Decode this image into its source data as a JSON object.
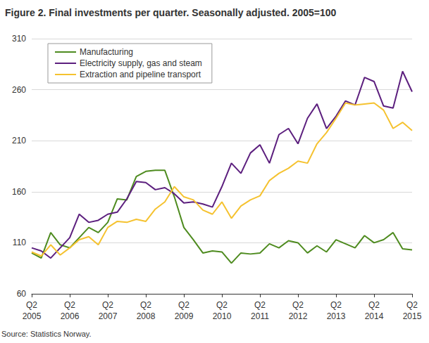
{
  "chart_data": {
    "type": "line",
    "title": "Figure 2. Final investments per quarter. Seasonally adjusted. 2005=100",
    "annotations": [
      "Source: Statistics Norway."
    ],
    "categories": [
      "Q2\n2005",
      null,
      null,
      null,
      "Q2\n2006",
      null,
      null,
      null,
      "Q2\n2007",
      null,
      null,
      null,
      "Q2\n2008",
      null,
      null,
      null,
      "Q2\n2009",
      null,
      null,
      null,
      "Q2\n2010",
      null,
      null,
      null,
      "Q2\n2011",
      null,
      null,
      null,
      "Q2\n2012",
      null,
      null,
      null,
      "Q2\n2013",
      null,
      null,
      null,
      "Q2\n2014",
      null,
      null,
      null,
      "Q2\n2015"
    ],
    "series": [
      {
        "name": "Manufacturing",
        "color": "#4e8b1f",
        "marker": "none",
        "line_style": "solid",
        "values": [
          100,
          95,
          120,
          108,
          105,
          115,
          125,
          120,
          130,
          153,
          152,
          175,
          180,
          181,
          181,
          155,
          125,
          113,
          100,
          102,
          101,
          90,
          100,
          99,
          100,
          109,
          105,
          112,
          110,
          100,
          107,
          101,
          113,
          109,
          105,
          117,
          110,
          113,
          120,
          104,
          103
        ]
      },
      {
        "name": "Electricity supply, gas and steam",
        "color": "#5c1f7e",
        "marker": "none",
        "line_style": "solid",
        "values": [
          105,
          102,
          95,
          105,
          115,
          138,
          130,
          132,
          138,
          140,
          153,
          170,
          169,
          162,
          164,
          158,
          149,
          150,
          148,
          145,
          165,
          188,
          178,
          198,
          206,
          188,
          216,
          222,
          207,
          232,
          246,
          222,
          234,
          249,
          245,
          272,
          268,
          244,
          242,
          278,
          258
        ]
      },
      {
        "name": "Extraction and pipeline transport",
        "color": "#f5c22f",
        "marker": "none",
        "line_style": "solid",
        "values": [
          101,
          97,
          108,
          98,
          105,
          113,
          116,
          108,
          125,
          131,
          130,
          133,
          131,
          143,
          150,
          165,
          155,
          152,
          142,
          138,
          150,
          134,
          146,
          152,
          156,
          171,
          178,
          183,
          190,
          188,
          207,
          218,
          232,
          247,
          245,
          246,
          247,
          240,
          222,
          228,
          220
        ]
      }
    ],
    "ylim": [
      60,
      310
    ],
    "yticks": [
      60,
      110,
      160,
      210,
      260,
      310
    ],
    "grid": true,
    "legend": "upper left"
  }
}
